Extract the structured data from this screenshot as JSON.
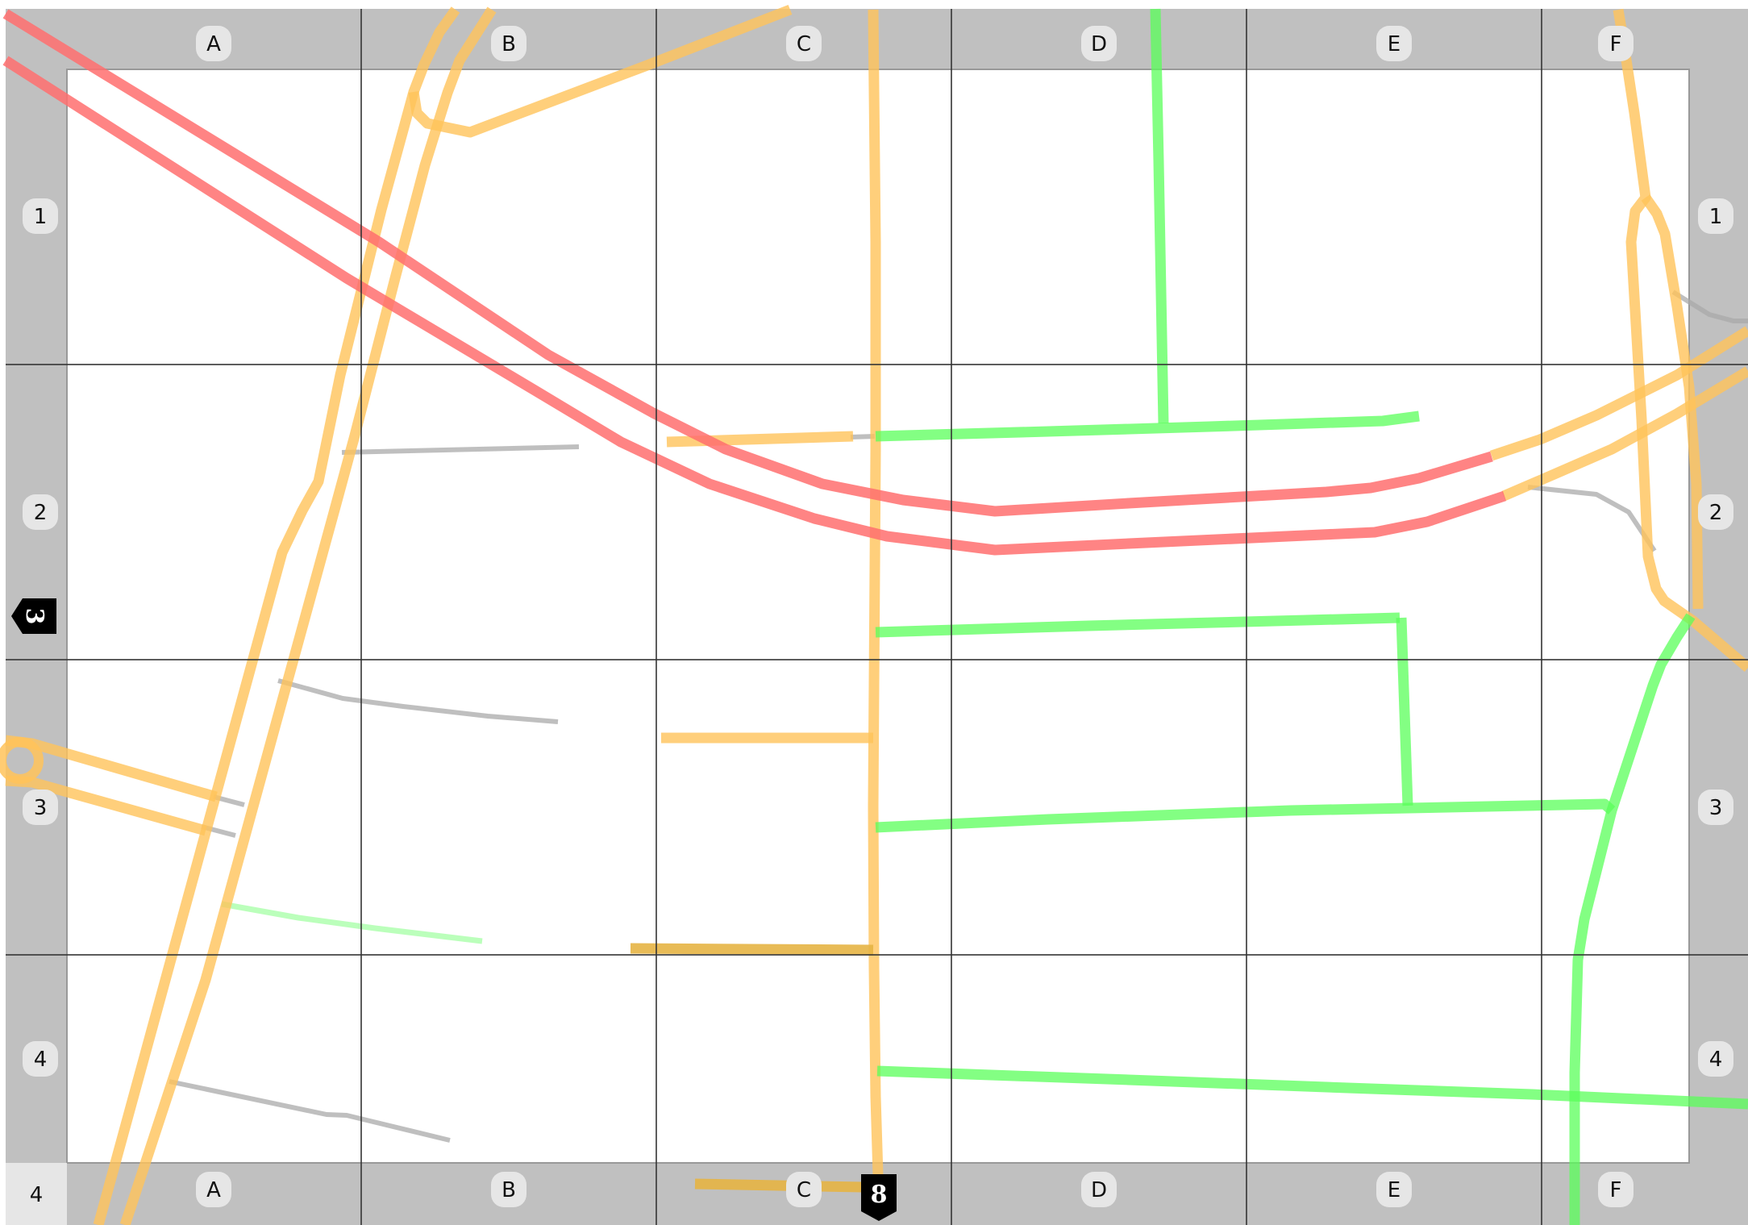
{
  "grid": {
    "columns": [
      "A",
      "B",
      "C",
      "D",
      "E",
      "F"
    ],
    "rows": [
      "1",
      "2",
      "3",
      "4"
    ],
    "corner_label": "4"
  },
  "markers": {
    "route_shield_bottom": "8",
    "route_shield_left": "3"
  },
  "colors": {
    "margin": "#c0c0c0",
    "grid_line": "#333333",
    "motorway": "#ff6e6e",
    "primary_road": "#ffc35a",
    "tertiary_road": "#5aff5a",
    "minor_road": "#aaaaaa",
    "path_light_green": "#aaffaa",
    "label_bubble": "#e6e6e6",
    "shield": "#000000"
  }
}
